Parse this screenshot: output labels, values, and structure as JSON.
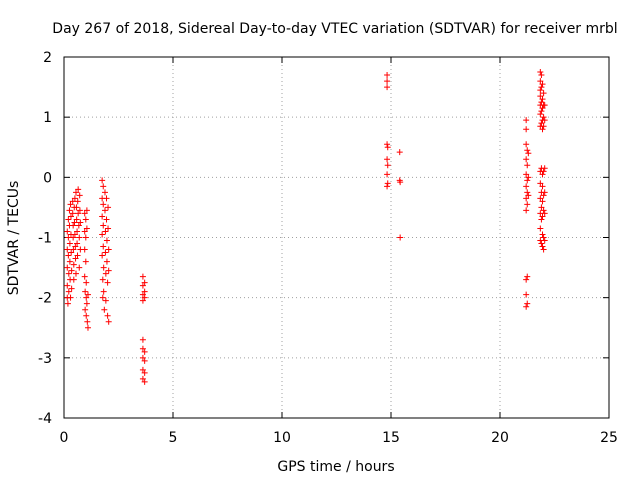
{
  "chart_data": {
    "type": "scatter",
    "title": "Day 267 of 2018, Sidereal Day-to-day VTEC variation (SDTVAR) for receiver mrbl",
    "xlabel": "GPS time / hours",
    "ylabel": "SDTVAR / TECUs",
    "xlim": [
      0,
      25
    ],
    "ylim": [
      -4,
      2
    ],
    "xticks": [
      0,
      5,
      10,
      15,
      20,
      25
    ],
    "yticks": [
      -4,
      -3,
      -2,
      -1,
      0,
      1,
      2
    ],
    "xtick_labels": [
      "0",
      "5",
      "10",
      "15",
      "20",
      "25"
    ],
    "ytick_labels": [
      "-4",
      "-3",
      "-2",
      "-1",
      "0",
      "1",
      "2"
    ],
    "grid": true,
    "marker": "+",
    "color": "#ff0000",
    "series": [
      {
        "name": "SDTVAR",
        "points": [
          [
            0.15,
            -0.9
          ],
          [
            0.15,
            -1.2
          ],
          [
            0.15,
            -1.5
          ],
          [
            0.15,
            -1.8
          ],
          [
            0.15,
            -2.0
          ],
          [
            0.18,
            -2.1
          ],
          [
            0.2,
            -0.7
          ],
          [
            0.2,
            -1.0
          ],
          [
            0.2,
            -1.3
          ],
          [
            0.22,
            -1.6
          ],
          [
            0.22,
            -1.9
          ],
          [
            0.25,
            -0.55
          ],
          [
            0.25,
            -0.8
          ],
          [
            0.27,
            -1.1
          ],
          [
            0.27,
            -1.4
          ],
          [
            0.28,
            -1.7
          ],
          [
            0.3,
            -2.0
          ],
          [
            0.3,
            -0.45
          ],
          [
            0.32,
            -0.65
          ],
          [
            0.32,
            -0.95
          ],
          [
            0.33,
            -1.25
          ],
          [
            0.35,
            -1.55
          ],
          [
            0.35,
            -1.85
          ],
          [
            0.4,
            -0.4
          ],
          [
            0.4,
            -0.6
          ],
          [
            0.42,
            -0.8
          ],
          [
            0.42,
            -1.0
          ],
          [
            0.43,
            -1.2
          ],
          [
            0.45,
            -1.45
          ],
          [
            0.45,
            -1.7
          ],
          [
            0.47,
            -0.5
          ],
          [
            0.48,
            -0.75
          ],
          [
            0.5,
            -0.35
          ],
          [
            0.5,
            -0.95
          ],
          [
            0.52,
            -1.15
          ],
          [
            0.53,
            -1.35
          ],
          [
            0.55,
            -1.6
          ],
          [
            0.55,
            -0.25
          ],
          [
            0.57,
            -0.5
          ],
          [
            0.58,
            -0.7
          ],
          [
            0.6,
            -0.9
          ],
          [
            0.6,
            -1.1
          ],
          [
            0.62,
            -1.3
          ],
          [
            0.63,
            -0.4
          ],
          [
            0.65,
            -0.2
          ],
          [
            0.65,
            -0.6
          ],
          [
            0.68,
            -0.8
          ],
          [
            0.7,
            -1.0
          ],
          [
            0.7,
            -1.5
          ],
          [
            0.72,
            -0.3
          ],
          [
            0.73,
            -0.55
          ],
          [
            0.75,
            -0.75
          ],
          [
            0.75,
            -1.2
          ],
          [
            0.95,
            -0.6
          ],
          [
            0.95,
            -0.9
          ],
          [
            0.95,
            -1.2
          ],
          [
            0.95,
            -1.65
          ],
          [
            0.97,
            -1.9
          ],
          [
            0.97,
            -2.2
          ],
          [
            1.0,
            -0.7
          ],
          [
            1.0,
            -1.0
          ],
          [
            1.0,
            -1.4
          ],
          [
            1.02,
            -1.75
          ],
          [
            1.02,
            -2.0
          ],
          [
            1.02,
            -2.3
          ],
          [
            1.05,
            -0.55
          ],
          [
            1.05,
            -0.85
          ],
          [
            1.05,
            -2.1
          ],
          [
            1.07,
            -2.4
          ],
          [
            1.1,
            -1.95
          ],
          [
            1.1,
            -2.5
          ],
          [
            1.75,
            -0.05
          ],
          [
            1.75,
            -0.35
          ],
          [
            1.75,
            -0.65
          ],
          [
            1.75,
            -0.95
          ],
          [
            1.75,
            -1.3
          ],
          [
            1.78,
            -1.7
          ],
          [
            1.78,
            -2.0
          ],
          [
            1.8,
            -0.15
          ],
          [
            1.8,
            -0.45
          ],
          [
            1.8,
            -0.8
          ],
          [
            1.8,
            -1.15
          ],
          [
            1.82,
            -1.5
          ],
          [
            1.82,
            -1.9
          ],
          [
            1.85,
            -2.2
          ],
          [
            1.88,
            -0.25
          ],
          [
            1.88,
            -0.55
          ],
          [
            1.9,
            -0.9
          ],
          [
            1.9,
            -1.25
          ],
          [
            1.92,
            -1.6
          ],
          [
            1.92,
            -2.05
          ],
          [
            1.95,
            -0.35
          ],
          [
            1.95,
            -0.7
          ],
          [
            1.97,
            -1.05
          ],
          [
            1.97,
            -1.4
          ],
          [
            2.0,
            -1.75
          ],
          [
            2.0,
            -2.3
          ],
          [
            2.02,
            -0.5
          ],
          [
            2.02,
            -0.85
          ],
          [
            2.05,
            -1.2
          ],
          [
            2.05,
            -2.4
          ],
          [
            2.05,
            -1.55
          ],
          [
            3.62,
            -1.65
          ],
          [
            3.62,
            -1.8
          ],
          [
            3.62,
            -1.95
          ],
          [
            3.62,
            -2.05
          ],
          [
            3.62,
            -2.7
          ],
          [
            3.62,
            -2.85
          ],
          [
            3.62,
            -3.0
          ],
          [
            3.62,
            -3.2
          ],
          [
            3.62,
            -3.35
          ],
          [
            3.7,
            -1.75
          ],
          [
            3.7,
            -1.9
          ],
          [
            3.7,
            -2.0
          ],
          [
            3.7,
            -2.9
          ],
          [
            3.7,
            -3.05
          ],
          [
            3.7,
            -3.25
          ],
          [
            3.7,
            -3.4
          ],
          [
            14.82,
            1.7
          ],
          [
            14.82,
            1.6
          ],
          [
            14.82,
            1.5
          ],
          [
            14.82,
            0.55
          ],
          [
            14.82,
            0.3
          ],
          [
            14.82,
            0.05
          ],
          [
            14.82,
            -0.15
          ],
          [
            14.85,
            0.5
          ],
          [
            14.85,
            0.2
          ],
          [
            14.85,
            -0.1
          ],
          [
            15.4,
            0.42
          ],
          [
            15.4,
            -0.05
          ],
          [
            15.42,
            -0.08
          ],
          [
            15.42,
            -1.0
          ],
          [
            21.2,
            0.95
          ],
          [
            21.2,
            0.8
          ],
          [
            21.2,
            0.55
          ],
          [
            21.2,
            0.3
          ],
          [
            21.2,
            0.05
          ],
          [
            21.2,
            -0.15
          ],
          [
            21.2,
            -0.35
          ],
          [
            21.2,
            -0.55
          ],
          [
            21.2,
            -1.7
          ],
          [
            21.2,
            -1.95
          ],
          [
            21.2,
            -2.15
          ],
          [
            21.25,
            0.45
          ],
          [
            21.25,
            0.2
          ],
          [
            21.25,
            -0.05
          ],
          [
            21.25,
            -0.25
          ],
          [
            21.25,
            -0.45
          ],
          [
            21.25,
            -1.65
          ],
          [
            21.25,
            -2.1
          ],
          [
            21.3,
            0.4
          ],
          [
            21.3,
            0.0
          ],
          [
            21.3,
            -0.3
          ],
          [
            21.85,
            1.75
          ],
          [
            21.85,
            1.6
          ],
          [
            21.85,
            1.45
          ],
          [
            21.85,
            1.35
          ],
          [
            21.85,
            1.2
          ],
          [
            21.85,
            1.05
          ],
          [
            21.85,
            0.85
          ],
          [
            21.85,
            0.1
          ],
          [
            21.85,
            -0.1
          ],
          [
            21.85,
            -0.35
          ],
          [
            21.85,
            -0.6
          ],
          [
            21.85,
            -0.85
          ],
          [
            21.85,
            -1.05
          ],
          [
            21.9,
            1.7
          ],
          [
            21.9,
            1.5
          ],
          [
            21.9,
            1.25
          ],
          [
            21.9,
            1.1
          ],
          [
            21.9,
            0.9
          ],
          [
            21.9,
            0.15
          ],
          [
            21.9,
            -0.25
          ],
          [
            21.9,
            -0.5
          ],
          [
            21.9,
            -0.7
          ],
          [
            21.9,
            -1.1
          ],
          [
            21.95,
            1.55
          ],
          [
            21.95,
            1.3
          ],
          [
            21.95,
            1.15
          ],
          [
            21.95,
            0.95
          ],
          [
            21.95,
            0.8
          ],
          [
            21.95,
            0.05
          ],
          [
            21.95,
            -0.15
          ],
          [
            21.95,
            -0.4
          ],
          [
            21.95,
            -0.65
          ],
          [
            21.95,
            -0.95
          ],
          [
            21.95,
            -1.15
          ],
          [
            22.0,
            1.4
          ],
          [
            22.0,
            1.2
          ],
          [
            22.0,
            1.0
          ],
          [
            22.0,
            0.85
          ],
          [
            22.0,
            0.1
          ],
          [
            22.0,
            -0.3
          ],
          [
            22.0,
            -0.55
          ],
          [
            22.0,
            -1.0
          ],
          [
            22.0,
            -1.2
          ],
          [
            22.05,
            1.2
          ],
          [
            22.05,
            0.95
          ],
          [
            22.05,
            0.15
          ],
          [
            22.05,
            -0.25
          ],
          [
            22.05,
            -0.6
          ],
          [
            22.05,
            -1.05
          ]
        ]
      }
    ]
  }
}
